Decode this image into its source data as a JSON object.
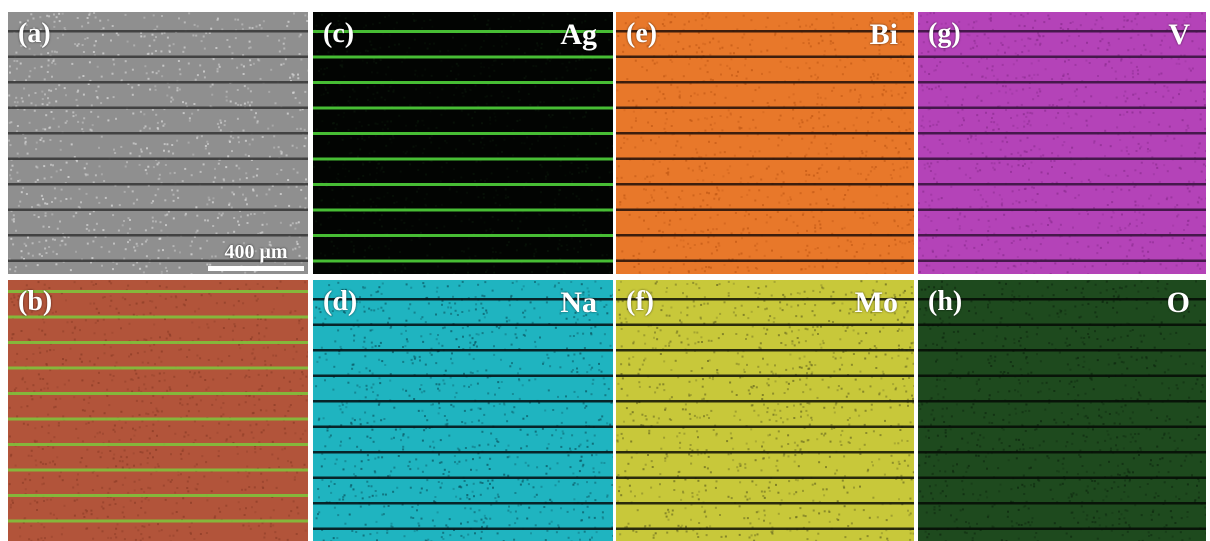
{
  "figure": {
    "scale_bar": "400 μm",
    "panels": [
      {
        "id": "a",
        "label": "(a)",
        "element": "",
        "colors": {
          "base": "#8f8f8f",
          "line": "#3a3a3a",
          "tint": "#d8d8d8"
        }
      },
      {
        "id": "c",
        "label": "(c)",
        "element": "Ag",
        "colors": {
          "base": "#020402",
          "line": "#4fd23a",
          "tint": "#0a160a"
        }
      },
      {
        "id": "e",
        "label": "(e)",
        "element": "Bi",
        "colors": {
          "base": "#e8782a",
          "line": "#2a140a",
          "tint": "#c35a16"
        }
      },
      {
        "id": "g",
        "label": "(g)",
        "element": "V",
        "colors": {
          "base": "#b443b8",
          "line": "#3a1440",
          "tint": "#8e2e92"
        }
      },
      {
        "id": "b",
        "label": "(b)",
        "element": "",
        "colors": {
          "base": "#b2543a",
          "line": "#7fc23c",
          "tint": "#8e3e28"
        }
      },
      {
        "id": "d",
        "label": "(d)",
        "element": "Na",
        "colors": {
          "base": "#1fb4c0",
          "line": "#041418",
          "tint": "#0b5a66"
        }
      },
      {
        "id": "f",
        "label": "(f)",
        "element": "Mo",
        "colors": {
          "base": "#c8c83a",
          "line": "#1a1a08",
          "tint": "#6e6e22"
        }
      },
      {
        "id": "h",
        "label": "(h)",
        "element": "O",
        "colors": {
          "base": "#1e4a1e",
          "line": "#060e06",
          "tint": "#0f2a10"
        }
      }
    ]
  }
}
